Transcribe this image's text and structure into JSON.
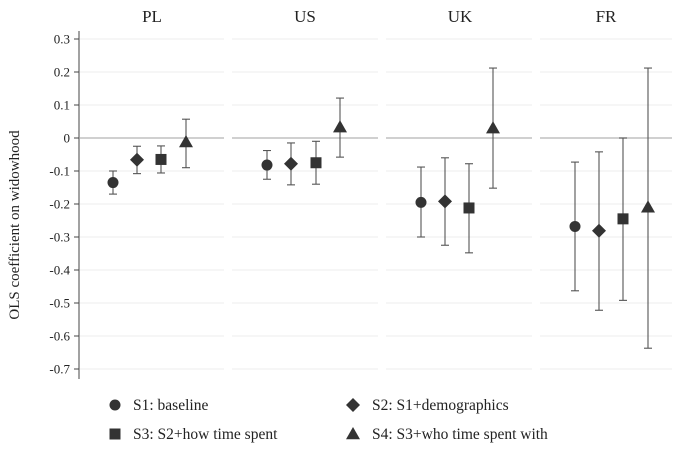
{
  "chart_data": {
    "type": "scatter",
    "subtype": "coefficient plot with 95% confidence intervals, faceted by country",
    "ylabel": "OLS coefficient on widowhood",
    "ylim": [
      -0.7,
      0.3
    ],
    "yticks": [
      0.3,
      0.2,
      0.1,
      0,
      -0.1,
      -0.2,
      -0.3,
      -0.4,
      -0.5,
      -0.6,
      -0.7
    ],
    "ytick_labels": [
      "0.3",
      "0.2",
      "0.1",
      "0",
      "-0.1",
      "-0.2",
      "-0.3",
      "-0.4",
      "-0.5",
      "-0.6",
      "-0.7"
    ],
    "zero_reference_line": true,
    "horizontal_grid": true,
    "legend_position": "bottom",
    "colors": {
      "marker": "#333333",
      "error_bar": "#555555",
      "reference_line": "#b4b4b4",
      "grid": "#ececec"
    },
    "panels": [
      "PL",
      "US",
      "UK",
      "FR"
    ],
    "series": [
      {
        "name": "S1: baseline",
        "marker": "circle",
        "values": [
          -0.135,
          -0.082,
          -0.195,
          -0.268
        ],
        "ci_low": [
          -0.17,
          -0.125,
          -0.3,
          -0.463
        ],
        "ci_high": [
          -0.1,
          -0.038,
          -0.088,
          -0.073
        ]
      },
      {
        "name": "S2: S1+demographics",
        "marker": "diamond",
        "values": [
          -0.066,
          -0.078,
          -0.192,
          -0.281
        ],
        "ci_low": [
          -0.108,
          -0.142,
          -0.325,
          -0.522
        ],
        "ci_high": [
          -0.025,
          -0.015,
          -0.06,
          -0.042
        ]
      },
      {
        "name": "S3: S2+how time spent",
        "marker": "square",
        "values": [
          -0.065,
          -0.075,
          -0.212,
          -0.245
        ],
        "ci_low": [
          -0.106,
          -0.14,
          -0.348,
          -0.492
        ],
        "ci_high": [
          -0.024,
          -0.01,
          -0.078,
          0.0
        ]
      },
      {
        "name": "S4: S3+who time spent with",
        "marker": "triangle",
        "values": [
          -0.012,
          0.033,
          0.03,
          -0.21
        ],
        "ci_low": [
          -0.09,
          -0.058,
          -0.152,
          -0.637
        ],
        "ci_high": [
          0.057,
          0.121,
          0.212,
          0.212
        ]
      }
    ]
  }
}
